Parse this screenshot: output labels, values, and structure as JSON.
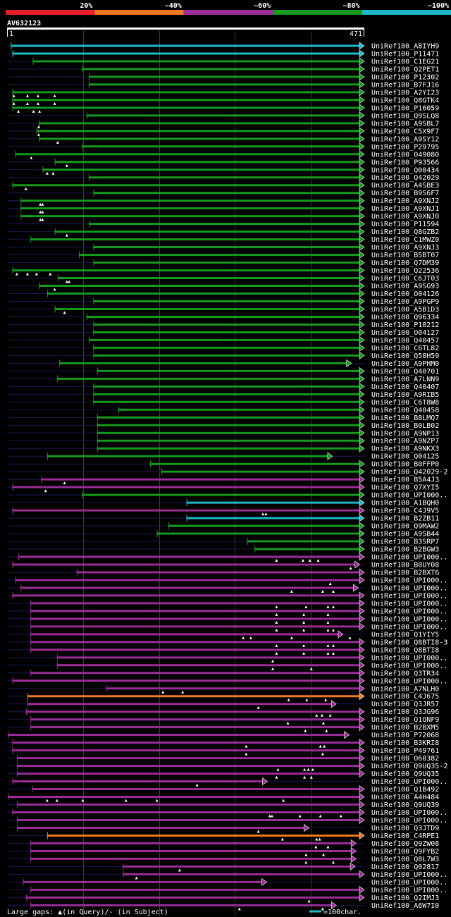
{
  "chart_data": {
    "type": "alignment-overview",
    "title": "AV632123",
    "query_length": 471,
    "ruler_start_label": "1",
    "ruler_end_label": "471",
    "legend": [
      {
        "label": "20%",
        "color": "#e8202a"
      },
      {
        "label": "~40%",
        "color": "#f07820"
      },
      {
        "label": "~60%",
        "color": "#9b2d97"
      },
      {
        "label": "~80%",
        "color": "#159a1e"
      },
      {
        "label": "~100%",
        "color": "#20b8c8"
      }
    ],
    "footer_gap_text": "Large gaps: ▲(in Query)/- (in Subject)",
    "footer_scale_text": "=100char.",
    "footer_scale_color": "#20b8c8",
    "colors": {
      "c": "#20b8c8",
      "g": "#159a1e",
      "p": "#9b2d97",
      "o": "#f07820",
      "line": "#1a1a55"
    },
    "hits": [
      {
        "name": "UniRef100_A8IYH9",
        "start": 4,
        "end": 471,
        "cls": "c",
        "gaps": []
      },
      {
        "name": "UniRef100_P11471",
        "start": 6,
        "end": 471,
        "cls": "c",
        "gaps": []
      },
      {
        "name": "UniRef100_C1EG21",
        "start": 33,
        "end": 471,
        "cls": "g",
        "gaps": []
      },
      {
        "name": "UniRef100_Q2PET1",
        "start": 98,
        "end": 471,
        "cls": "g",
        "gaps": []
      },
      {
        "name": "UniRef100_P12302",
        "start": 107,
        "end": 471,
        "cls": "g",
        "gaps": []
      },
      {
        "name": "UniRef100_B7FJ16",
        "start": 107,
        "end": 471,
        "cls": "g",
        "gaps": []
      },
      {
        "name": "UniRef100_A2YI23",
        "start": 6,
        "end": 471,
        "cls": "g",
        "gaps": [
          8,
          26,
          40,
          62
        ]
      },
      {
        "name": "UniRef100_Q8GTK4",
        "start": 6,
        "end": 471,
        "cls": "g",
        "gaps": [
          8,
          26,
          40,
          62
        ]
      },
      {
        "name": "UniRef100_P16059",
        "start": 6,
        "end": 471,
        "cls": "g",
        "gaps": [
          14,
          34,
          42
        ]
      },
      {
        "name": "UniRef100_Q9SLQ8",
        "start": 104,
        "end": 471,
        "cls": "g",
        "gaps": []
      },
      {
        "name": "UniRef100_A9SBL7",
        "start": 41,
        "end": 471,
        "cls": "g",
        "gaps": [
          41
        ]
      },
      {
        "name": "UniRef100_C5X9F7",
        "start": 38,
        "end": 471,
        "cls": "g",
        "gaps": [
          41
        ]
      },
      {
        "name": "UniRef100_A9SY12",
        "start": 41,
        "end": 471,
        "cls": "g",
        "gaps": [
          66
        ]
      },
      {
        "name": "UniRef100_P29795",
        "start": 98,
        "end": 471,
        "cls": "g",
        "gaps": []
      },
      {
        "name": "UniRef100_O49080",
        "start": 10,
        "end": 471,
        "cls": "g",
        "gaps": [
          31
        ]
      },
      {
        "name": "UniRef100_P93566",
        "start": 62,
        "end": 471,
        "cls": "g",
        "gaps": [
          78
        ]
      },
      {
        "name": "UniRef100_Q00434",
        "start": 46,
        "end": 471,
        "cls": "g",
        "gaps": [
          52,
          60
        ]
      },
      {
        "name": "UniRef100_Q42029",
        "start": 107,
        "end": 471,
        "cls": "g",
        "gaps": []
      },
      {
        "name": "UniRef100_A4SBE3",
        "start": 6,
        "end": 471,
        "cls": "g",
        "gaps": [
          24
        ]
      },
      {
        "name": "UniRef100_B9S6F7",
        "start": 113,
        "end": 471,
        "cls": "g",
        "gaps": []
      },
      {
        "name": "UniRef100_A9XNJ2",
        "start": 17,
        "end": 471,
        "cls": "g",
        "gaps": [
          43,
          46
        ]
      },
      {
        "name": "UniRef100_A9XNJ1",
        "start": 17,
        "end": 471,
        "cls": "g",
        "gaps": [
          43,
          46
        ]
      },
      {
        "name": "UniRef100_A9XNJ0",
        "start": 17,
        "end": 471,
        "cls": "g",
        "gaps": [
          43,
          46
        ]
      },
      {
        "name": "UniRef100_P11594",
        "start": 107,
        "end": 471,
        "cls": "g",
        "gaps": []
      },
      {
        "name": "UniRef100_Q8GZB2",
        "start": 62,
        "end": 471,
        "cls": "g",
        "gaps": [
          78
        ]
      },
      {
        "name": "UniRef100_C1MWZ0",
        "start": 30,
        "end": 471,
        "cls": "g",
        "gaps": []
      },
      {
        "name": "UniRef100_A9XNJ3",
        "start": 113,
        "end": 471,
        "cls": "g",
        "gaps": []
      },
      {
        "name": "UniRef100_B5BT07",
        "start": 94,
        "end": 471,
        "cls": "g",
        "gaps": []
      },
      {
        "name": "UniRef100_Q7DM39",
        "start": 113,
        "end": 471,
        "cls": "g",
        "gaps": []
      },
      {
        "name": "UniRef100_Q22536",
        "start": 6,
        "end": 471,
        "cls": "g",
        "gaps": [
          12,
          26,
          38,
          56
        ]
      },
      {
        "name": "UniRef100_C6JT03",
        "start": 66,
        "end": 471,
        "cls": "g",
        "gaps": [
          78,
          81
        ]
      },
      {
        "name": "UniRef100_A9SG93",
        "start": 41,
        "end": 471,
        "cls": "g",
        "gaps": [
          62
        ]
      },
      {
        "name": "UniRef100_O04126",
        "start": 52,
        "end": 471,
        "cls": "g",
        "gaps": []
      },
      {
        "name": "UniRef100_A9PGP9",
        "start": 113,
        "end": 471,
        "cls": "g",
        "gaps": []
      },
      {
        "name": "UniRef100_A5B1D3",
        "start": 62,
        "end": 471,
        "cls": "g",
        "gaps": [
          75
        ]
      },
      {
        "name": "UniRef100_Q96334",
        "start": 104,
        "end": 471,
        "cls": "g",
        "gaps": []
      },
      {
        "name": "UniRef100_P18212",
        "start": 113,
        "end": 471,
        "cls": "g",
        "gaps": []
      },
      {
        "name": "UniRef100_O04127",
        "start": 113,
        "end": 471,
        "cls": "g",
        "gaps": []
      },
      {
        "name": "UniRef100_Q40457",
        "start": 107,
        "end": 471,
        "cls": "g",
        "gaps": []
      },
      {
        "name": "UniRef100_C6TL82",
        "start": 113,
        "end": 471,
        "cls": "g",
        "gaps": []
      },
      {
        "name": "UniRef100_Q58H59",
        "start": 113,
        "end": 471,
        "cls": "g",
        "gaps": []
      },
      {
        "name": "UniRef100_A9PHM0",
        "start": 68,
        "end": 454,
        "cls": "g",
        "gaps": []
      },
      {
        "name": "UniRef100_Q40701",
        "start": 118,
        "end": 471,
        "cls": "g",
        "gaps": []
      },
      {
        "name": "UniRef100_A7LNN9",
        "start": 65,
        "end": 471,
        "cls": "g",
        "gaps": []
      },
      {
        "name": "UniRef100_Q40407",
        "start": 113,
        "end": 471,
        "cls": "g",
        "gaps": []
      },
      {
        "name": "UniRef100_A9RIB5",
        "start": 113,
        "end": 471,
        "cls": "g",
        "gaps": []
      },
      {
        "name": "UniRef100_C6T8W8",
        "start": 113,
        "end": 471,
        "cls": "g",
        "gaps": []
      },
      {
        "name": "UniRef100_Q40458",
        "start": 146,
        "end": 471,
        "cls": "g",
        "gaps": []
      },
      {
        "name": "UniRef100_B8LMQ7",
        "start": 118,
        "end": 471,
        "cls": "g",
        "gaps": []
      },
      {
        "name": "UniRef100_B0LB02",
        "start": 118,
        "end": 471,
        "cls": "g",
        "gaps": []
      },
      {
        "name": "UniRef100_A9NP13",
        "start": 118,
        "end": 471,
        "cls": "g",
        "gaps": []
      },
      {
        "name": "UniRef100_A9NZP7",
        "start": 118,
        "end": 471,
        "cls": "g",
        "gaps": []
      },
      {
        "name": "UniRef100_A9NKX3",
        "start": 118,
        "end": 471,
        "cls": "g",
        "gaps": []
      },
      {
        "name": "UniRef100_Q04125",
        "start": 52,
        "end": 429,
        "cls": "g",
        "gaps": []
      },
      {
        "name": "UniRef100_B0FFP0",
        "start": 188,
        "end": 471,
        "cls": "g",
        "gaps": []
      },
      {
        "name": "UniRef100_Q42029-2",
        "start": 203,
        "end": 471,
        "cls": "g",
        "gaps": []
      },
      {
        "name": "UniRef100_B5A4J3",
        "start": 44,
        "end": 471,
        "cls": "p",
        "gaps": [
          75
        ]
      },
      {
        "name": "UniRef100_Q7XYI5",
        "start": 6,
        "end": 471,
        "cls": "p",
        "gaps": [
          50
        ]
      },
      {
        "name": "UniRef100_UPI000..",
        "start": 98,
        "end": 471,
        "cls": "g",
        "gaps": []
      },
      {
        "name": "UniRef100_A1BQH0",
        "start": 236,
        "end": 471,
        "cls": "c",
        "gaps": []
      },
      {
        "name": "UniRef100_C4J9V5",
        "start": 6,
        "end": 471,
        "cls": "p",
        "gaps": [
          337,
          341
        ]
      },
      {
        "name": "UniRef100_B2ZB11",
        "start": 236,
        "end": 471,
        "cls": "c",
        "gaps": []
      },
      {
        "name": "UniRef100_Q9MAW2",
        "start": 212,
        "end": 471,
        "cls": "g",
        "gaps": []
      },
      {
        "name": "UniRef100_A9SB44",
        "start": 197,
        "end": 471,
        "cls": "g",
        "gaps": []
      },
      {
        "name": "UniRef100_B3SRP7",
        "start": 316,
        "end": 471,
        "cls": "g",
        "gaps": []
      },
      {
        "name": "UniRef100_B2BGW3",
        "start": 326,
        "end": 471,
        "cls": "g",
        "gaps": []
      },
      {
        "name": "UniRef100_UPI000..",
        "start": 14,
        "end": 471,
        "cls": "p",
        "gaps": [
          355,
          390,
          399,
          410
        ]
      },
      {
        "name": "UniRef100_B0UY08",
        "start": 6,
        "end": 465,
        "cls": "p",
        "gaps": [
          453
        ]
      },
      {
        "name": "UniRef100_B2BXT6",
        "start": 91,
        "end": 471,
        "cls": "p",
        "gaps": []
      },
      {
        "name": "UniRef100_UPI000..",
        "start": 10,
        "end": 471,
        "cls": "p",
        "gaps": [
          426
        ]
      },
      {
        "name": "UniRef100_UPI000..",
        "start": 17,
        "end": 463,
        "cls": "p",
        "gaps": [
          375,
          416,
          430
        ]
      },
      {
        "name": "UniRef100_UPI000..",
        "start": 6,
        "end": 471,
        "cls": "p",
        "gaps": []
      },
      {
        "name": "UniRef100_UPI000..",
        "start": 30,
        "end": 471,
        "cls": "p",
        "gaps": [
          355,
          394,
          423,
          430
        ]
      },
      {
        "name": "UniRef100_UPI000..",
        "start": 30,
        "end": 471,
        "cls": "p",
        "gaps": [
          355,
          391,
          423
        ]
      },
      {
        "name": "UniRef100_UPI000..",
        "start": 30,
        "end": 471,
        "cls": "p",
        "gaps": [
          355,
          391,
          423
        ]
      },
      {
        "name": "UniRef100_UPI000..",
        "start": 30,
        "end": 471,
        "cls": "p",
        "gaps": [
          355,
          391,
          423,
          430
        ]
      },
      {
        "name": "UniRef100_Q1YIY5",
        "start": 30,
        "end": 443,
        "cls": "p",
        "gaps": [
          311,
          321,
          375,
          452
        ]
      },
      {
        "name": "UniRef100_Q8BTI8-3",
        "start": 30,
        "end": 471,
        "cls": "p",
        "gaps": [
          355,
          391,
          423,
          430
        ]
      },
      {
        "name": "UniRef100_Q8BTI8",
        "start": 30,
        "end": 471,
        "cls": "p",
        "gaps": [
          355,
          391,
          423,
          430
        ]
      },
      {
        "name": "UniRef100_UPI000..",
        "start": 65,
        "end": 471,
        "cls": "p",
        "gaps": [
          350
        ]
      },
      {
        "name": "UniRef100_UPI000..",
        "start": 65,
        "end": 471,
        "cls": "p",
        "gaps": [
          350,
          401
        ]
      },
      {
        "name": "UniRef100_Q3TR34",
        "start": 30,
        "end": 471,
        "cls": "p",
        "gaps": []
      },
      {
        "name": "UniRef100_UPI000..",
        "start": 6,
        "end": 471,
        "cls": "p",
        "gaps": []
      },
      {
        "name": "UniRef100_A7NLH0",
        "start": 130,
        "end": 471,
        "cls": "p",
        "gaps": [
          205,
          231
        ]
      },
      {
        "name": "UniRef100_C4J675",
        "start": 26,
        "end": 471,
        "cls": "o",
        "gaps": [
          371,
          395,
          420
        ]
      },
      {
        "name": "UniRef100_Q3JR57",
        "start": 26,
        "end": 434,
        "cls": "p",
        "gaps": [
          331
        ]
      },
      {
        "name": "UniRef100_Q3JG96",
        "start": 24,
        "end": 471,
        "cls": "p",
        "gaps": [
          408,
          415,
          426
        ]
      },
      {
        "name": "UniRef100_Q1QNF9",
        "start": 30,
        "end": 471,
        "cls": "p",
        "gaps": [
          370,
          417
        ]
      },
      {
        "name": "UniRef100_B2BXM5",
        "start": 30,
        "end": 471,
        "cls": "p",
        "gaps": [
          393,
          421
        ]
      },
      {
        "name": "UniRef100_P72068",
        "start": 0,
        "end": 451,
        "cls": "p",
        "gaps": []
      },
      {
        "name": "UniRef100_B3KRI8",
        "start": 6,
        "end": 471,
        "cls": "p",
        "gaps": [
          315,
          413,
          418
        ]
      },
      {
        "name": "UniRef100_P49761",
        "start": 6,
        "end": 471,
        "cls": "p",
        "gaps": [
          315,
          416
        ]
      },
      {
        "name": "UniRef100_O60382",
        "start": 12,
        "end": 471,
        "cls": "p",
        "gaps": []
      },
      {
        "name": "UniRef100_Q9UQ35-2",
        "start": 12,
        "end": 471,
        "cls": "p",
        "gaps": [
          357,
          392,
          397,
          403
        ]
      },
      {
        "name": "UniRef100_Q9UQ35",
        "start": 12,
        "end": 471,
        "cls": "p",
        "gaps": [
          355,
          392,
          401
        ]
      },
      {
        "name": "UniRef100_UPI000..",
        "start": 6,
        "end": 343,
        "cls": "p",
        "gaps": [
          250
        ]
      },
      {
        "name": "UniRef100_Q1B492",
        "start": 32,
        "end": 471,
        "cls": "p",
        "gaps": []
      },
      {
        "name": "UniRef100_A4H484",
        "start": 0,
        "end": 471,
        "cls": "p",
        "gaps": [
          52,
          65,
          99,
          156,
          197,
          364
        ]
      },
      {
        "name": "UniRef100_Q9UQ39",
        "start": 12,
        "end": 471,
        "cls": "p",
        "gaps": []
      },
      {
        "name": "UniRef100_UPI000..",
        "start": 6,
        "end": 471,
        "cls": "p",
        "gaps": [
          346,
          349,
          386,
          413,
          440
        ]
      },
      {
        "name": "UniRef100_UPI000..",
        "start": 12,
        "end": 471,
        "cls": "p",
        "gaps": []
      },
      {
        "name": "UniRef100_Q3JTD9",
        "start": 12,
        "end": 398,
        "cls": "p",
        "gaps": [
          331
        ]
      },
      {
        "name": "UniRef100_C4RPE1",
        "start": 52,
        "end": 471,
        "cls": "o",
        "gaps": [
          363,
          408,
          412
        ]
      },
      {
        "name": "UniRef100_Q9ZW08",
        "start": 30,
        "end": 460,
        "cls": "p",
        "gaps": [
          407,
          423
        ]
      },
      {
        "name": "UniRef100_Q9FYB2",
        "start": 30,
        "end": 460,
        "cls": "p",
        "gaps": [
          394,
          417
        ]
      },
      {
        "name": "UniRef100_Q8L7W3",
        "start": 30,
        "end": 460,
        "cls": "p",
        "gaps": [
          394,
          430
        ]
      },
      {
        "name": "UniRef100_Q02817",
        "start": 152,
        "end": 459,
        "cls": "p",
        "gaps": [
          227
        ]
      },
      {
        "name": "UniRef100_UPI000..",
        "start": 152,
        "end": 471,
        "cls": "p",
        "gaps": [
          170
        ]
      },
      {
        "name": "UniRef100_UPI000..",
        "start": 20,
        "end": 342,
        "cls": "p",
        "gaps": []
      },
      {
        "name": "UniRef100_UPI000..",
        "start": 30,
        "end": 471,
        "cls": "p",
        "gaps": []
      },
      {
        "name": "UniRef100_Q2IMJ3",
        "start": 24,
        "end": 471,
        "cls": "p",
        "gaps": [
          398
        ]
      },
      {
        "name": "UniRef100_A6W7I0",
        "start": 30,
        "end": 434,
        "cls": "p",
        "gaps": [
          306,
          416
        ]
      }
    ]
  }
}
